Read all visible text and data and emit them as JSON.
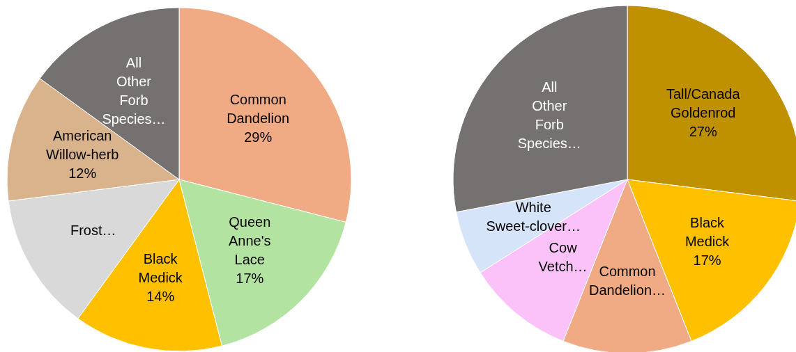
{
  "chart_data": [
    {
      "type": "pie",
      "categories": [
        "Common Dandelion",
        "Queen Anne's Lace",
        "Black Medick",
        "Frost…",
        "American Willow-herb",
        "All Other Forb Species…"
      ],
      "values": [
        29,
        17,
        14,
        13,
        12,
        15
      ],
      "colors": [
        "#f0aa84",
        "#b3e3a0",
        "#ffc000",
        "#d9d9d9",
        "#d9b38c",
        "#767171"
      ],
      "value_labels": [
        "29%",
        "17%",
        "14%",
        null,
        "12%",
        null
      ]
    },
    {
      "type": "pie",
      "categories": [
        "Tall/Canada Goldenrod",
        "Black Medick",
        "Common Dandelion…",
        "Cow Vetch…",
        "White Sweet-clover…",
        "All Other Forb Species…"
      ],
      "values": [
        27,
        17,
        12,
        10,
        6,
        28
      ],
      "colors": [
        "#bf9000",
        "#ffc000",
        "#f0aa84",
        "#fbc2f9",
        "#d6e4fa",
        "#767171"
      ],
      "value_labels": [
        "27%",
        "17%",
        null,
        null,
        null,
        null
      ]
    }
  ]
}
